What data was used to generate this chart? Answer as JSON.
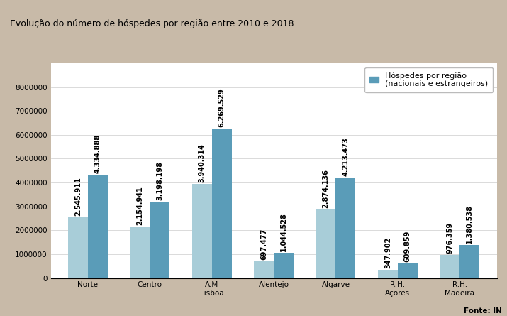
{
  "title": "Evolução do número de hóspedes por região entre 2010 e 2018",
  "fonte": "Fonte: IN",
  "categories": [
    "Norte",
    "Centro",
    "A.M\nLisboa",
    "Alentejo",
    "Algarve",
    "R.H.\nAçores",
    "R.H.\nMadeira"
  ],
  "values_2010": [
    2545911,
    2154941,
    3940314,
    697477,
    2874136,
    347902,
    976359
  ],
  "values_2018": [
    4334888,
    3198198,
    6269529,
    1044528,
    4213473,
    609859,
    1380538
  ],
  "labels_2010": [
    "2.545.911",
    "2.154.941",
    "3.940.314",
    "697.477",
    "2.874.136",
    "347.902",
    "976.359"
  ],
  "labels_2018": [
    "4.334.888",
    "3.198.198",
    "6.269.529",
    "1.044.528",
    "4.213.473",
    "609.859",
    "1.380.538"
  ],
  "color_2010": "#a8cdd8",
  "color_2018": "#5a9cb8",
  "legend_label": "Hóspedes por região\n(nacionais e estrangeiros)",
  "ylim": [
    0,
    9000000
  ],
  "yticks": [
    0,
    1000000,
    2000000,
    3000000,
    4000000,
    5000000,
    6000000,
    7000000,
    8000000
  ],
  "ytick_labels": [
    "0",
    "1000000",
    "2000000",
    "3000000",
    "4000000",
    "5000000",
    "6000000",
    "7000000",
    "8000000"
  ],
  "background_color": "#c8baa8",
  "plot_background": "white",
  "title_fontsize": 9,
  "label_fontsize": 7,
  "tick_fontsize": 7.5,
  "bar_width": 0.32
}
